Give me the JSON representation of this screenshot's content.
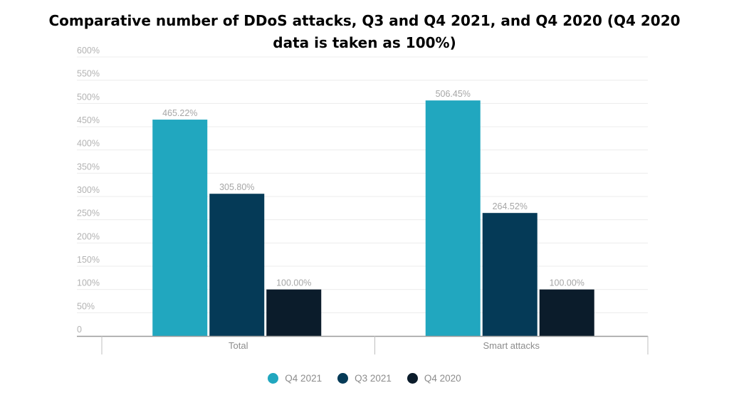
{
  "chart_data": {
    "type": "bar",
    "title": "Comparative number of DDoS attacks, Q3 and Q4 2021, and Q4 2020 (Q4 2020 data is taken as 100%)",
    "categories": [
      "Total",
      "Smart attacks"
    ],
    "series": [
      {
        "name": "Q4 2021",
        "color": "#21a7bf",
        "values": [
          465.22,
          506.45
        ],
        "labels": [
          "465.22%",
          "506.45%"
        ]
      },
      {
        "name": "Q3 2021",
        "color": "#053a57",
        "values": [
          305.8,
          264.52
        ],
        "labels": [
          "305.80%",
          "264.52%"
        ]
      },
      {
        "name": "Q4 2020",
        "color": "#0b1c2b",
        "values": [
          100.0,
          100.0
        ],
        "labels": [
          "100.00%",
          "100.00%"
        ]
      }
    ],
    "ylim": [
      0,
      600
    ],
    "yticks": [
      0,
      50,
      100,
      150,
      200,
      250,
      300,
      350,
      400,
      450,
      500,
      550,
      600
    ],
    "ytick_labels": [
      "0",
      "50%",
      "100%",
      "150%",
      "200%",
      "250%",
      "300%",
      "350%",
      "400%",
      "450%",
      "500%",
      "550%",
      "600%"
    ],
    "xlabel": "",
    "ylabel": "",
    "grid": true,
    "legend_position": "bottom-center"
  }
}
